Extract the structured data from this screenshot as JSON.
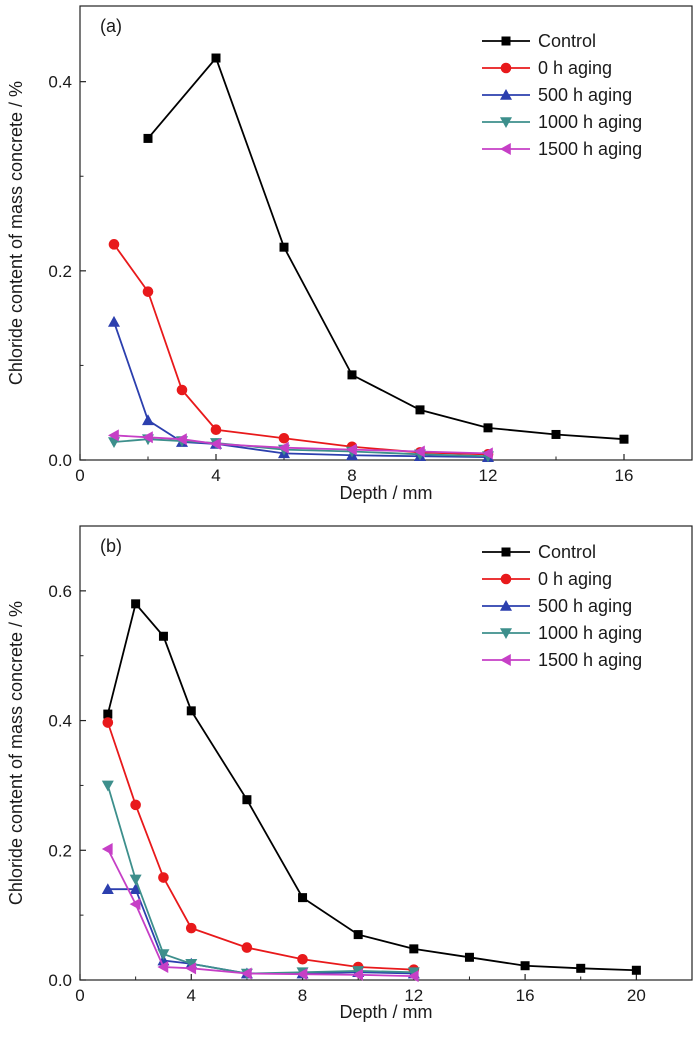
{
  "chart_data": [
    {
      "type": "line",
      "panel_label": "(a)",
      "xlabel": "Depth / mm",
      "ylabel": "Chloride content of mass concrete / %",
      "xlim": [
        0,
        18
      ],
      "ylim": [
        0,
        0.48
      ],
      "xticks": [
        0,
        4,
        8,
        12,
        16
      ],
      "xtick_labels": [
        "0",
        "4",
        "8",
        "12",
        "16"
      ],
      "yticks": [
        0.0,
        0.2,
        0.4
      ],
      "ytick_labels": [
        "0.0",
        "0.2",
        "0.4"
      ],
      "legend_position": "top-right",
      "series": [
        {
          "name": "Control",
          "color": "#000000",
          "marker": "square",
          "x": [
            2,
            4,
            6,
            8,
            10,
            12,
            14,
            16
          ],
          "y": [
            0.34,
            0.425,
            0.225,
            0.09,
            0.053,
            0.034,
            0.027,
            0.022
          ]
        },
        {
          "name": "0 h aging",
          "color": "#e8191b",
          "marker": "circle",
          "x": [
            1,
            2,
            3,
            4,
            6,
            8,
            10,
            12
          ],
          "y": [
            0.228,
            0.178,
            0.074,
            0.032,
            0.023,
            0.014,
            0.008,
            0.006
          ]
        },
        {
          "name": "500 h aging",
          "color": "#2c3fae",
          "marker": "triangle-up",
          "x": [
            1,
            2,
            3,
            4,
            6,
            8,
            10,
            12
          ],
          "y": [
            0.146,
            0.042,
            0.019,
            0.017,
            0.007,
            0.005,
            0.004,
            0.003
          ]
        },
        {
          "name": "1000 h aging",
          "color": "#3d8f8c",
          "marker": "triangle-down",
          "x": [
            1,
            2,
            3,
            4,
            6,
            8,
            10,
            12
          ],
          "y": [
            0.019,
            0.022,
            0.02,
            0.018,
            0.011,
            0.009,
            0.006,
            0.004
          ]
        },
        {
          "name": "1500 h aging",
          "color": "#c63fc6",
          "marker": "triangle-left",
          "x": [
            1,
            2,
            3,
            4,
            6,
            8,
            10,
            12
          ],
          "y": [
            0.026,
            0.024,
            0.022,
            0.017,
            0.013,
            0.011,
            0.009,
            0.007
          ]
        }
      ]
    },
    {
      "type": "line",
      "panel_label": "(b)",
      "xlabel": "Depth / mm",
      "ylabel": "Chloride content of mass concrete / %",
      "xlim": [
        0,
        22
      ],
      "ylim": [
        0,
        0.7
      ],
      "xticks": [
        0,
        4,
        8,
        12,
        16,
        20
      ],
      "xtick_labels": [
        "0",
        "4",
        "8",
        "12",
        "16",
        "20"
      ],
      "yticks": [
        0.0,
        0.2,
        0.4,
        0.6
      ],
      "ytick_labels": [
        "0.0",
        "0.2",
        "0.4",
        "0.6"
      ],
      "legend_position": "top-right",
      "series": [
        {
          "name": "Control",
          "color": "#000000",
          "marker": "square",
          "x": [
            1,
            2,
            3,
            4,
            6,
            8,
            10,
            12,
            14,
            16,
            18,
            20
          ],
          "y": [
            0.41,
            0.58,
            0.53,
            0.415,
            0.278,
            0.127,
            0.07,
            0.048,
            0.035,
            0.022,
            0.018,
            0.015
          ]
        },
        {
          "name": "0 h aging",
          "color": "#e8191b",
          "marker": "circle",
          "x": [
            1,
            2,
            3,
            4,
            6,
            8,
            10,
            12
          ],
          "y": [
            0.397,
            0.27,
            0.158,
            0.08,
            0.05,
            0.032,
            0.02,
            0.016
          ]
        },
        {
          "name": "500 h aging",
          "color": "#2c3fae",
          "marker": "triangle-up",
          "x": [
            1,
            2,
            3,
            4,
            6,
            8,
            10,
            12
          ],
          "y": [
            0.14,
            0.14,
            0.03,
            0.025,
            0.01,
            0.01,
            0.012,
            0.01
          ]
        },
        {
          "name": "1000 h aging",
          "color": "#3d8f8c",
          "marker": "triangle-down",
          "x": [
            1,
            2,
            3,
            4,
            6,
            8,
            10,
            12
          ],
          "y": [
            0.3,
            0.155,
            0.04,
            0.025,
            0.01,
            0.012,
            0.014,
            0.012
          ]
        },
        {
          "name": "1500 h aging",
          "color": "#c63fc6",
          "marker": "triangle-left",
          "x": [
            1,
            2,
            3,
            4,
            6,
            8,
            10,
            12
          ],
          "y": [
            0.202,
            0.117,
            0.02,
            0.018,
            0.01,
            0.009,
            0.008,
            0.006
          ]
        }
      ]
    }
  ]
}
